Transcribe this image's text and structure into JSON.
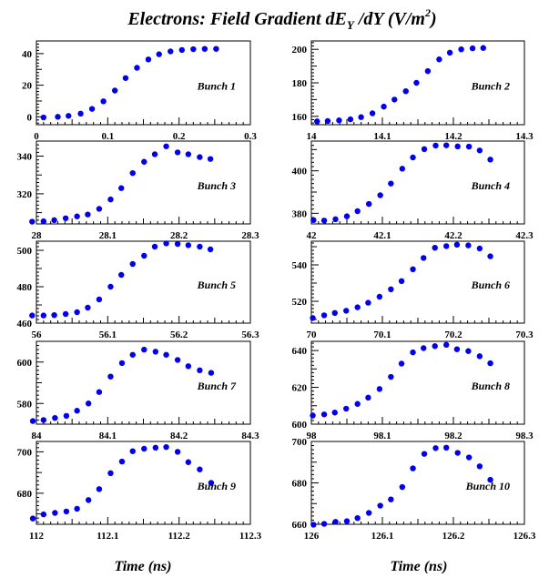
{
  "figure": {
    "title_main": "Electrons: Field Gradient dE",
    "title_sub_y": "Y",
    "title_rest": " /dY (V/m",
    "title_sup": "2",
    "title_close": ")",
    "xlabel": "Time (ns)",
    "marker_color": "#0000ee",
    "axis_color": "#000000"
  },
  "chart_data": [
    {
      "type": "scatter",
      "label": "Bunch 1",
      "xlim": [
        0,
        0.3
      ],
      "ylim": [
        -5,
        48
      ],
      "xticks": [
        0,
        0.1,
        0.2,
        0.3
      ],
      "xtick_labels": [
        "0",
        "0.1",
        "0.2",
        "0.3"
      ],
      "yticks": [
        0,
        20,
        40
      ],
      "ytick_labels": [
        "0",
        "20",
        "40"
      ],
      "x": [
        0.01,
        0.03,
        0.045,
        0.062,
        0.078,
        0.094,
        0.11,
        0.125,
        0.141,
        0.157,
        0.172,
        0.188,
        0.204,
        0.22,
        0.236,
        0.252
      ],
      "y": [
        -0.4,
        0.0,
        0.6,
        2.0,
        5.0,
        9.8,
        16.6,
        24.5,
        31.0,
        36.3,
        39.6,
        41.4,
        42.3,
        42.8,
        43.0,
        43.0
      ]
    },
    {
      "type": "scatter",
      "label": "Bunch 2",
      "xlim": [
        14.0,
        14.3
      ],
      "ylim": [
        155,
        205
      ],
      "xticks": [
        14.0,
        14.1,
        14.2,
        14.3
      ],
      "xtick_labels": [
        "14",
        "14.1",
        "14.2",
        "14.3"
      ],
      "yticks": [
        160,
        180,
        200
      ],
      "ytick_labels": [
        "160",
        "180",
        "200"
      ],
      "x": [
        14.008,
        14.023,
        14.039,
        14.055,
        14.07,
        14.086,
        14.102,
        14.117,
        14.133,
        14.148,
        14.164,
        14.18,
        14.195,
        14.211,
        14.227,
        14.242
      ],
      "y": [
        157.0,
        157.2,
        157.6,
        158.2,
        159.5,
        161.8,
        165.8,
        170.0,
        175.0,
        180.0,
        187.0,
        194.0,
        198.0,
        200.0,
        200.6,
        200.8
      ]
    },
    {
      "type": "scatter",
      "label": "Bunch 3",
      "xlim": [
        28.0,
        28.3
      ],
      "ylim": [
        304,
        348
      ],
      "xticks": [
        28.0,
        28.1,
        28.2,
        28.3
      ],
      "xtick_labels": [
        "28",
        "28.1",
        "28.2",
        "28.3"
      ],
      "yticks": [
        320,
        340
      ],
      "ytick_labels": [
        "320",
        "340"
      ],
      "x": [
        27.994,
        28.01,
        28.025,
        28.041,
        28.057,
        28.072,
        28.088,
        28.104,
        28.119,
        28.135,
        28.151,
        28.166,
        28.182,
        28.198,
        28.213,
        28.229,
        28.244
      ],
      "y": [
        305.2,
        305.4,
        306.0,
        307.0,
        308.0,
        309.0,
        312.0,
        317.0,
        323.0,
        331.0,
        337.0,
        341.0,
        345.2,
        342.0,
        341.0,
        339.5,
        338.5
      ]
    },
    {
      "type": "scatter",
      "label": "Bunch 4",
      "xlim": [
        42.0,
        42.3
      ],
      "ylim": [
        375,
        414
      ],
      "xticks": [
        42.0,
        42.1,
        42.2,
        42.3
      ],
      "xtick_labels": [
        "42",
        "42.1",
        "42.2",
        "42.3"
      ],
      "yticks": [
        380,
        400
      ],
      "ytick_labels": [
        "380",
        "400"
      ],
      "x": [
        42.003,
        42.018,
        42.034,
        42.05,
        42.065,
        42.081,
        42.097,
        42.112,
        42.128,
        42.143,
        42.159,
        42.175,
        42.19,
        42.206,
        42.222,
        42.237,
        42.252
      ],
      "y": [
        376.8,
        376.6,
        377.2,
        378.6,
        381.0,
        384.4,
        388.5,
        394.0,
        401.0,
        406.3,
        410.2,
        411.9,
        412.0,
        411.5,
        411.4,
        409.6,
        405.3
      ]
    },
    {
      "type": "scatter",
      "label": "Bunch 5",
      "xlim": [
        56.0,
        56.3
      ],
      "ylim": [
        460,
        505
      ],
      "xticks": [
        56.0,
        56.1,
        56.2,
        56.3
      ],
      "xtick_labels": [
        "56",
        "56.1",
        "56.2",
        "56.3"
      ],
      "yticks": [
        460,
        480,
        500
      ],
      "ytick_labels": [
        "460",
        "480",
        "500"
      ],
      "x": [
        55.994,
        56.01,
        56.025,
        56.041,
        56.057,
        56.072,
        56.088,
        56.104,
        56.119,
        56.135,
        56.151,
        56.166,
        56.182,
        56.198,
        56.213,
        56.229,
        56.244
      ],
      "y": [
        464.2,
        464.2,
        464.4,
        465.0,
        466.0,
        468.5,
        473.0,
        480.0,
        486.5,
        492.5,
        497.0,
        502.0,
        503.8,
        503.5,
        502.8,
        502.0,
        500.5
      ]
    },
    {
      "type": "scatter",
      "label": "Bunch 6",
      "xlim": [
        70.0,
        70.3
      ],
      "ylim": [
        508,
        553
      ],
      "xticks": [
        70.0,
        70.1,
        70.2,
        70.3
      ],
      "xtick_labels": [
        "70",
        "70.1",
        "70.2",
        "70.3"
      ],
      "yticks": [
        520,
        540
      ],
      "ytick_labels": [
        "520",
        "540"
      ],
      "x": [
        70.002,
        70.018,
        70.033,
        70.049,
        70.065,
        70.08,
        70.096,
        70.112,
        70.127,
        70.143,
        70.158,
        70.174,
        70.19,
        70.205,
        70.221,
        70.237,
        70.252
      ],
      "y": [
        510.8,
        512.3,
        513.6,
        514.8,
        516.7,
        519.2,
        522.5,
        526.6,
        531.1,
        537.6,
        543.8,
        549.4,
        550.3,
        551.1,
        550.7,
        549.0,
        544.7
      ]
    },
    {
      "type": "scatter",
      "label": "Bunch 7",
      "xlim": [
        84.0,
        84.3
      ],
      "ylim": [
        570,
        610
      ],
      "xticks": [
        84.0,
        84.1,
        84.2,
        84.3
      ],
      "xtick_labels": [
        "84",
        "84.1",
        "84.2",
        "84.3"
      ],
      "yticks": [
        580,
        600
      ],
      "ytick_labels": [
        "580",
        "600"
      ],
      "x": [
        83.995,
        84.01,
        84.026,
        84.042,
        84.057,
        84.073,
        84.088,
        84.104,
        84.12,
        84.135,
        84.151,
        84.167,
        84.182,
        84.198,
        84.213,
        84.229,
        84.245
      ],
      "y": [
        571.5,
        572.0,
        573.0,
        574.0,
        576.5,
        580.0,
        585.5,
        593.0,
        599.5,
        603.5,
        606.0,
        605.0,
        603.5,
        601.0,
        598.0,
        596.0,
        594.8
      ]
    },
    {
      "type": "scatter",
      "label": "Bunch 8",
      "xlim": [
        98.0,
        98.3
      ],
      "ylim": [
        600,
        645
      ],
      "xticks": [
        98.0,
        98.1,
        98.2,
        98.3
      ],
      "xtick_labels": [
        "98",
        "98.1",
        "98.2",
        "98.3"
      ],
      "yticks": [
        600,
        620,
        640
      ],
      "ytick_labels": [
        "600",
        "620",
        "640"
      ],
      "x": [
        98.002,
        98.018,
        98.033,
        98.049,
        98.065,
        98.08,
        98.096,
        98.112,
        98.127,
        98.143,
        98.158,
        98.174,
        98.19,
        98.205,
        98.221,
        98.237,
        98.252
      ],
      "y": [
        604.7,
        605.3,
        606.3,
        608.4,
        611.0,
        614.4,
        619.1,
        625.7,
        632.9,
        639.0,
        641.3,
        642.4,
        643.1,
        640.7,
        639.7,
        636.9,
        633.1
      ]
    },
    {
      "type": "scatter",
      "label": "Bunch 9",
      "xlim": [
        112.0,
        112.3
      ],
      "ylim": [
        665,
        705
      ],
      "xticks": [
        112.0,
        112.1,
        112.2,
        112.3
      ],
      "xtick_labels": [
        "112",
        "112.1",
        "112.2",
        "112.3"
      ],
      "yticks": [
        680,
        700
      ],
      "ytick_labels": [
        "680",
        "700"
      ],
      "x": [
        111.995,
        112.01,
        112.026,
        112.042,
        112.057,
        112.073,
        112.088,
        112.104,
        112.12,
        112.135,
        112.151,
        112.167,
        112.182,
        112.198,
        112.213,
        112.229,
        112.245
      ],
      "y": [
        667.8,
        669.8,
        670.5,
        671.2,
        672.5,
        676.7,
        682.0,
        689.7,
        695.3,
        700.3,
        701.5,
        702.0,
        702.3,
        700.0,
        695.0,
        691.5,
        685.0
      ]
    },
    {
      "type": "scatter",
      "label": "Bunch 10",
      "xlim": [
        126.0,
        126.3
      ],
      "ylim": [
        660,
        700
      ],
      "xticks": [
        126.0,
        126.1,
        126.2,
        126.3
      ],
      "xtick_labels": [
        "126",
        "126.1",
        "126.2",
        "126.3"
      ],
      "yticks": [
        660,
        680,
        700
      ],
      "ytick_labels": [
        "660",
        "680",
        "700"
      ],
      "x": [
        126.003,
        126.018,
        126.034,
        126.05,
        126.065,
        126.081,
        126.097,
        126.112,
        126.128,
        126.143,
        126.159,
        126.175,
        126.19,
        126.206,
        126.222,
        126.237,
        126.252
      ],
      "y": [
        659.8,
        660.2,
        661.2,
        661.5,
        663.0,
        665.5,
        669.0,
        672.0,
        678.0,
        687.0,
        694.0,
        696.8,
        697.0,
        694.5,
        692.3,
        688.0,
        681.5
      ]
    }
  ]
}
